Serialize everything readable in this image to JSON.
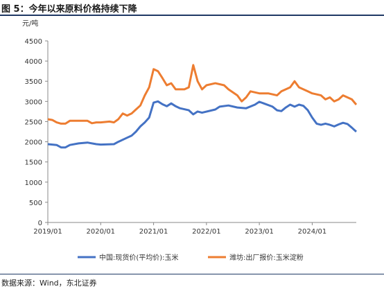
{
  "figure_title": "图 5：今年以来原料价格持续下降",
  "source": "数据来源：Wind，东北证券",
  "chart_data": {
    "type": "line",
    "title": "",
    "xlabel": "",
    "ylabel": "元/吨",
    "ylim": [
      0,
      4500
    ],
    "yticks": [
      0,
      500,
      1000,
      1500,
      2000,
      2500,
      3000,
      3500,
      4000,
      4500
    ],
    "xlim": [
      "2019-01",
      "2024-11"
    ],
    "xticks": [
      "2019/01",
      "2020/01",
      "2021/01",
      "2022/01",
      "2023/01",
      "2024/01"
    ],
    "grid": false,
    "legend_position": "bottom",
    "series": [
      {
        "name": "中国:现货价(平均价):玉米",
        "color": "#4472c4",
        "points": [
          [
            "2019-01",
            1940
          ],
          [
            "2019-03",
            1920
          ],
          [
            "2019-04",
            1860
          ],
          [
            "2019-05",
            1860
          ],
          [
            "2019-06",
            1920
          ],
          [
            "2019-08",
            1960
          ],
          [
            "2019-10",
            1980
          ],
          [
            "2019-12",
            1940
          ],
          [
            "2020-01",
            1930
          ],
          [
            "2020-04",
            1940
          ],
          [
            "2020-05",
            2000
          ],
          [
            "2020-07",
            2100
          ],
          [
            "2020-08",
            2150
          ],
          [
            "2020-09",
            2250
          ],
          [
            "2020-10",
            2380
          ],
          [
            "2020-11",
            2480
          ],
          [
            "2020-12",
            2600
          ],
          [
            "2021-01",
            2970
          ],
          [
            "2021-02",
            3000
          ],
          [
            "2021-03",
            2930
          ],
          [
            "2021-04",
            2880
          ],
          [
            "2021-05",
            2950
          ],
          [
            "2021-06",
            2880
          ],
          [
            "2021-07",
            2830
          ],
          [
            "2021-09",
            2780
          ],
          [
            "2021-10",
            2680
          ],
          [
            "2021-11",
            2750
          ],
          [
            "2021-12",
            2720
          ],
          [
            "2022-03",
            2800
          ],
          [
            "2022-04",
            2870
          ],
          [
            "2022-06",
            2900
          ],
          [
            "2022-08",
            2850
          ],
          [
            "2022-10",
            2830
          ],
          [
            "2022-12",
            2920
          ],
          [
            "2023-01",
            2990
          ],
          [
            "2023-02",
            2950
          ],
          [
            "2023-04",
            2870
          ],
          [
            "2023-05",
            2780
          ],
          [
            "2023-06",
            2760
          ],
          [
            "2023-07",
            2850
          ],
          [
            "2023-08",
            2920
          ],
          [
            "2023-09",
            2870
          ],
          [
            "2023-10",
            2920
          ],
          [
            "2023-11",
            2890
          ],
          [
            "2023-12",
            2780
          ],
          [
            "2024-01",
            2600
          ],
          [
            "2024-02",
            2450
          ],
          [
            "2024-03",
            2420
          ],
          [
            "2024-04",
            2450
          ],
          [
            "2024-05",
            2420
          ],
          [
            "2024-06",
            2380
          ],
          [
            "2024-07",
            2430
          ],
          [
            "2024-08",
            2470
          ],
          [
            "2024-09",
            2440
          ],
          [
            "2024-10",
            2350
          ],
          [
            "2024-11",
            2250
          ]
        ]
      },
      {
        "name": "潍坊:出厂报价:玉米淀粉",
        "color": "#ed7d31",
        "points": [
          [
            "2019-01",
            2560
          ],
          [
            "2019-02",
            2540
          ],
          [
            "2019-03",
            2480
          ],
          [
            "2019-04",
            2450
          ],
          [
            "2019-05",
            2450
          ],
          [
            "2019-06",
            2520
          ],
          [
            "2019-08",
            2520
          ],
          [
            "2019-10",
            2520
          ],
          [
            "2019-11",
            2460
          ],
          [
            "2019-12",
            2480
          ],
          [
            "2020-01",
            2480
          ],
          [
            "2020-03",
            2500
          ],
          [
            "2020-04",
            2480
          ],
          [
            "2020-05",
            2560
          ],
          [
            "2020-06",
            2700
          ],
          [
            "2020-07",
            2650
          ],
          [
            "2020-08",
            2700
          ],
          [
            "2020-09",
            2800
          ],
          [
            "2020-10",
            2900
          ],
          [
            "2020-11",
            3150
          ],
          [
            "2020-12",
            3350
          ],
          [
            "2021-01",
            3800
          ],
          [
            "2021-02",
            3750
          ],
          [
            "2021-03",
            3580
          ],
          [
            "2021-04",
            3400
          ],
          [
            "2021-05",
            3450
          ],
          [
            "2021-06",
            3300
          ],
          [
            "2021-08",
            3300
          ],
          [
            "2021-09",
            3350
          ],
          [
            "2021-10",
            3900
          ],
          [
            "2021-11",
            3500
          ],
          [
            "2021-12",
            3300
          ],
          [
            "2022-01",
            3400
          ],
          [
            "2022-03",
            3450
          ],
          [
            "2022-05",
            3400
          ],
          [
            "2022-06",
            3300
          ],
          [
            "2022-08",
            3150
          ],
          [
            "2022-09",
            3000
          ],
          [
            "2022-10",
            3100
          ],
          [
            "2022-11",
            3250
          ],
          [
            "2023-01",
            3200
          ],
          [
            "2023-03",
            3200
          ],
          [
            "2023-05",
            3150
          ],
          [
            "2023-06",
            3250
          ],
          [
            "2023-07",
            3300
          ],
          [
            "2023-08",
            3350
          ],
          [
            "2023-09",
            3500
          ],
          [
            "2023-10",
            3350
          ],
          [
            "2023-12",
            3250
          ],
          [
            "2024-01",
            3200
          ],
          [
            "2024-03",
            3150
          ],
          [
            "2024-04",
            3050
          ],
          [
            "2024-05",
            3100
          ],
          [
            "2024-06",
            3000
          ],
          [
            "2024-07",
            3050
          ],
          [
            "2024-08",
            3150
          ],
          [
            "2024-09",
            3100
          ],
          [
            "2024-10",
            3050
          ],
          [
            "2024-11",
            2920
          ]
        ]
      }
    ]
  }
}
